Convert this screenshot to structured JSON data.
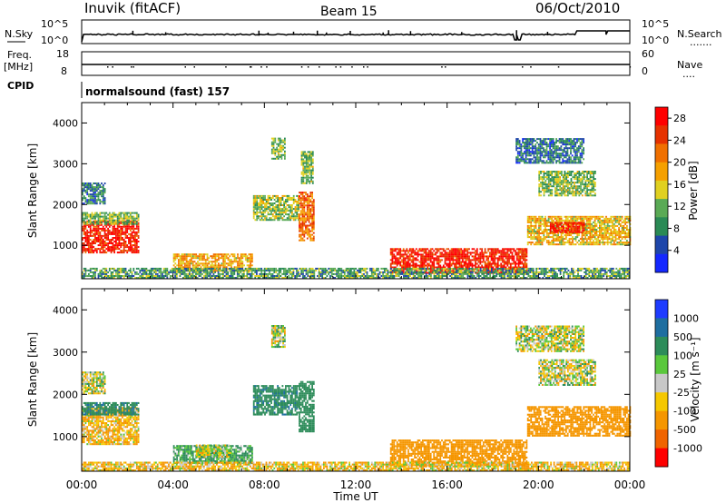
{
  "header": {
    "station": "Inuvik (fitACF)",
    "beam": "Beam 15",
    "date": "06/Oct/2010"
  },
  "panels": {
    "nsky": {
      "left_label": "N.Sky",
      "left_ticks": [
        "10^5",
        "10^0"
      ],
      "right_ticks": [
        "10^5",
        "10^0"
      ],
      "right_label": "N.Search",
      "right_dots": "......."
    },
    "freq": {
      "left_label_1": "Freq.",
      "left_label_2": "[MHz]",
      "left_ticks": [
        "18",
        "8"
      ],
      "right_ticks": [
        "60",
        "0"
      ],
      "right_label": "Nave",
      "right_dots": "...."
    },
    "cpid": {
      "label": "CPID",
      "text": "normalsound (fast) 157"
    }
  },
  "chart_data": [
    {
      "type": "heatmap",
      "title": "",
      "xlabel": "Time UT",
      "ylabel": "Slant Range [km]",
      "xlim": [
        "00:00",
        "24:00"
      ],
      "ylim": [
        180,
        4500
      ],
      "x_ticks": [
        "00:00",
        "04:00",
        "08:00",
        "12:00",
        "16:00",
        "20:00",
        "00:00"
      ],
      "y_ticks": [
        1000,
        2000,
        3000,
        4000
      ],
      "colorbar": {
        "label": "Power [dB]",
        "ticks": [
          4,
          8,
          12,
          16,
          20,
          24,
          28
        ],
        "range": [
          0,
          30
        ],
        "colors": [
          "#1428ff",
          "#1e46aa",
          "#2a8a55",
          "#5aaa55",
          "#e0d020",
          "#f5a000",
          "#f07000",
          "#e63200",
          "#ff0000"
        ]
      },
      "regions": [
        {
          "t": [
            0.0,
            2.5
          ],
          "r": [
            800,
            1600
          ],
          "v": 27
        },
        {
          "t": [
            0.0,
            2.5
          ],
          "r": [
            1500,
            1800
          ],
          "v": 12
        },
        {
          "t": [
            0.0,
            1.0
          ],
          "r": [
            2000,
            2500
          ],
          "v": 8
        },
        {
          "t": [
            4.0,
            7.5
          ],
          "r": [
            350,
            800
          ],
          "v": 18
        },
        {
          "t": [
            7.5,
            9.5
          ],
          "r": [
            1600,
            2200
          ],
          "v": 13
        },
        {
          "t": [
            8.3,
            8.9
          ],
          "r": [
            3100,
            3600
          ],
          "v": 12
        },
        {
          "t": [
            9.5,
            10.2
          ],
          "r": [
            1100,
            2300
          ],
          "v": 22
        },
        {
          "t": [
            9.6,
            10.1
          ],
          "r": [
            2500,
            3300
          ],
          "v": 12
        },
        {
          "t": [
            13.5,
            19.5
          ],
          "r": [
            300,
            900
          ],
          "v": 27
        },
        {
          "t": [
            19.0,
            22.0
          ],
          "r": [
            3000,
            3600
          ],
          "v": 7
        },
        {
          "t": [
            20.0,
            22.5
          ],
          "r": [
            2200,
            2800
          ],
          "v": 12
        },
        {
          "t": [
            19.5,
            24.0
          ],
          "r": [
            1000,
            1700
          ],
          "v": 17
        },
        {
          "t": [
            20.5,
            22.0
          ],
          "r": [
            1300,
            1550
          ],
          "v": 27
        },
        {
          "t": [
            0.0,
            24.0
          ],
          "r": [
            180,
            450
          ],
          "v": 10
        }
      ]
    },
    {
      "type": "heatmap",
      "title": "",
      "xlabel": "Time UT",
      "ylabel": "Slant Range [km]",
      "xlim": [
        "00:00",
        "24:00"
      ],
      "ylim": [
        180,
        4500
      ],
      "x_ticks": [
        "00:00",
        "04:00",
        "08:00",
        "12:00",
        "16:00",
        "20:00",
        "00:00"
      ],
      "y_ticks": [
        1000,
        2000,
        3000,
        4000
      ],
      "colorbar": {
        "label": "Velocity [m s⁻¹]",
        "ticks": [
          "1000",
          "500",
          "100",
          "25",
          "-25",
          "-100",
          "-500",
          "-1000"
        ],
        "colors": [
          "#1e3cff",
          "#1e6ea0",
          "#2d8c5a",
          "#5ac83c",
          "#c8c8c8",
          "#f5c800",
          "#f59600",
          "#f06400",
          "#ff0000"
        ]
      },
      "regions": [
        {
          "t": [
            0.0,
            2.5
          ],
          "r": [
            800,
            1700
          ],
          "v": -100
        },
        {
          "t": [
            0.0,
            2.5
          ],
          "r": [
            1500,
            1800
          ],
          "v": 400
        },
        {
          "t": [
            0.0,
            1.0
          ],
          "r": [
            2000,
            2500
          ],
          "v": 0
        },
        {
          "t": [
            4.0,
            7.5
          ],
          "r": [
            350,
            800
          ],
          "v": 150
        },
        {
          "t": [
            5.0,
            6.5
          ],
          "r": [
            500,
            800
          ],
          "v": 0
        },
        {
          "t": [
            7.5,
            9.5
          ],
          "r": [
            1500,
            2200
          ],
          "v": 400
        },
        {
          "t": [
            8.3,
            8.9
          ],
          "r": [
            3100,
            3600
          ],
          "v": 0
        },
        {
          "t": [
            9.5,
            10.2
          ],
          "r": [
            1100,
            2300
          ],
          "v": 300
        },
        {
          "t": [
            13.5,
            19.5
          ],
          "r": [
            300,
            900
          ],
          "v": -300
        },
        {
          "t": [
            19.0,
            22.0
          ],
          "r": [
            3000,
            3600
          ],
          "v": 0
        },
        {
          "t": [
            20.0,
            22.5
          ],
          "r": [
            2200,
            2800
          ],
          "v": 0
        },
        {
          "t": [
            19.5,
            24.0
          ],
          "r": [
            1000,
            1700
          ],
          "v": -300
        },
        {
          "t": [
            0.0,
            24.0
          ],
          "r": [
            180,
            400
          ],
          "v": -80
        }
      ]
    }
  ]
}
